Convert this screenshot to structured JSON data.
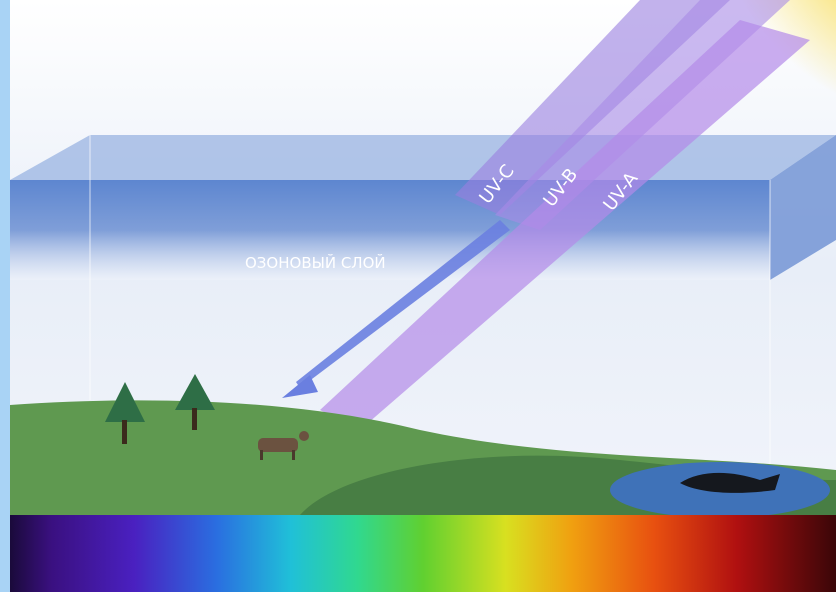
{
  "labels": {
    "ozone_layer": "ОЗОНОВЫЙ СЛОЙ",
    "uv_c": "UV-C",
    "uv_b": "UV-B",
    "uv_a": "UV-A"
  }
}
